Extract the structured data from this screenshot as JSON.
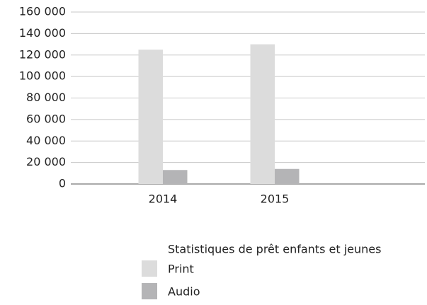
{
  "chart_data": {
    "type": "bar",
    "categories": [
      "2014",
      "2015"
    ],
    "series": [
      {
        "name": "Print",
        "color": "#dcdcdc",
        "values": [
          125000,
          130000
        ]
      },
      {
        "name": "Audio",
        "color": "#b4b4b6",
        "values": [
          13000,
          14000
        ]
      }
    ],
    "ylim": [
      0,
      160000
    ],
    "yticks": [
      0,
      {
        "value": 20000,
        "label": "20 000"
      },
      {
        "value": 40000,
        "label": "40 000"
      },
      {
        "value": 60000,
        "label": "60 000"
      },
      {
        "value": 80000,
        "label": "80 000"
      },
      {
        "value": 100000,
        "label": "100 000"
      },
      {
        "value": 120000,
        "label": "120 000"
      },
      {
        "value": 140000,
        "label": "140 000"
      },
      {
        "value": 160000,
        "label": "160 000"
      }
    ],
    "grid": true,
    "legend": {
      "title": "Statistiques de prêt enfants et jeunes",
      "position": "bottom"
    }
  }
}
